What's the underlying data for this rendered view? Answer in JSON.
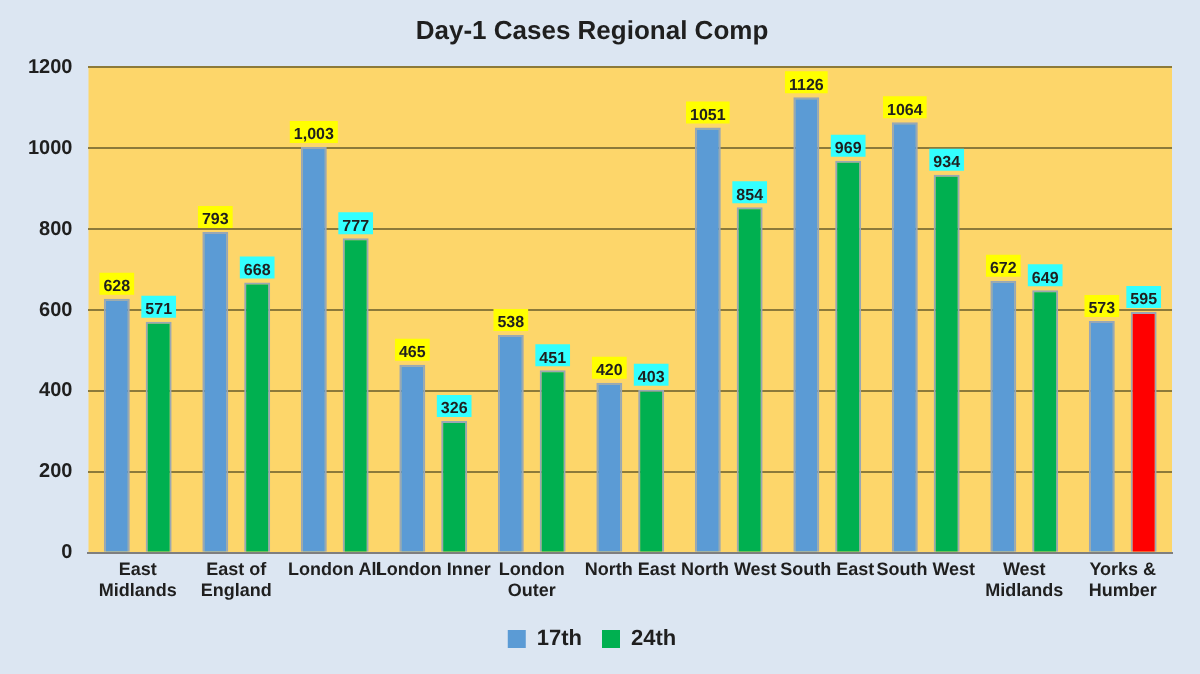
{
  "chart_data": {
    "type": "bar",
    "title": "Day-1 Cases Regional Comp",
    "categories": [
      "East Midlands",
      "East of England",
      "London All",
      "London Inner",
      "London Outer",
      "North East",
      "North West",
      "South East",
      "South West",
      "West Midlands",
      "Yorks & Humber"
    ],
    "series": [
      {
        "name": "17th",
        "color": "#5b9bd5",
        "values": [
          628,
          793,
          1003,
          465,
          538,
          420,
          1051,
          1126,
          1064,
          672,
          573
        ],
        "value_labels": [
          "628",
          "793",
          "1,003",
          "465",
          "538",
          "420",
          "1051",
          "1126",
          "1064",
          "672",
          "573"
        ]
      },
      {
        "name": "24th",
        "color": "#00b050",
        "colors": [
          "#00b050",
          "#00b050",
          "#00b050",
          "#00b050",
          "#00b050",
          "#00b050",
          "#00b050",
          "#00b050",
          "#00b050",
          "#00b050",
          "#ff0000"
        ],
        "values": [
          571,
          668,
          777,
          326,
          451,
          403,
          854,
          969,
          934,
          649,
          595
        ],
        "value_labels": [
          "571",
          "668",
          "777",
          "326",
          "451",
          "403",
          "854",
          "969",
          "934",
          "649",
          "595"
        ]
      }
    ],
    "ylim": [
      0,
      1200
    ],
    "yticks": [
      0,
      200,
      400,
      600,
      800,
      1000,
      1200
    ],
    "grid": "y",
    "legend": "bottom"
  }
}
